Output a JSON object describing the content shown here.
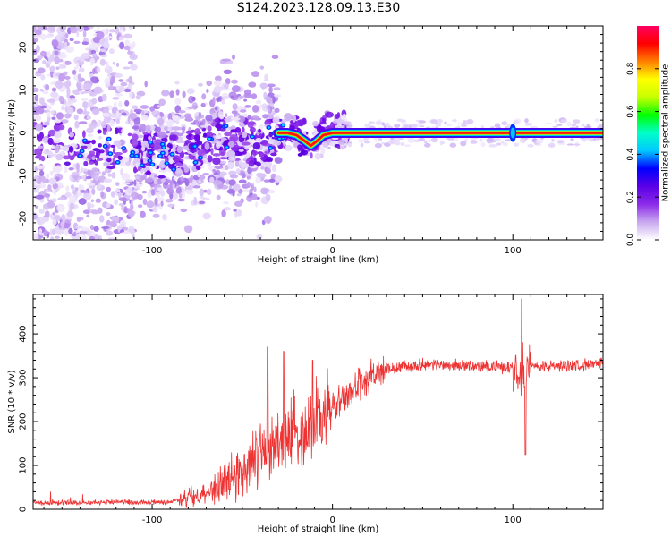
{
  "title": "S124.2023.128.09.13.E30",
  "chart_data": [
    {
      "type": "heatmap",
      "title": "",
      "xlabel": "Height of straight line (km)",
      "ylabel": "Frequency (Hz)",
      "xlim": [
        -166,
        150
      ],
      "ylim": [
        -25,
        25
      ],
      "x_ticks": [
        -100,
        0,
        100
      ],
      "y_ticks": [
        -20,
        -10,
        0,
        10,
        20
      ],
      "grid": false,
      "ridge": [
        [
          -166,
          -2
        ],
        [
          -140,
          -3
        ],
        [
          -120,
          -4
        ],
        [
          -100,
          -5
        ],
        [
          -90,
          -6
        ],
        [
          -80,
          -5
        ],
        [
          -70,
          -3
        ],
        [
          -60,
          -1
        ],
        [
          -50,
          -2
        ],
        [
          -40,
          -3
        ],
        [
          -30,
          0
        ],
        [
          -25,
          0
        ],
        [
          -20,
          -0.5
        ],
        [
          -15,
          -2
        ],
        [
          -12,
          -3
        ],
        [
          -9,
          -2
        ],
        [
          -5,
          -0.5
        ],
        [
          0,
          0
        ],
        [
          20,
          0
        ],
        [
          100,
          0
        ],
        [
          150,
          0
        ]
      ],
      "colorbar": {
        "label": "Normalized spectral amplitude",
        "ticks": [
          0.0,
          0.2,
          0.4,
          0.6,
          0.8
        ],
        "range": [
          0,
          1
        ],
        "colors": [
          "#ffffff",
          "#c9a8f0",
          "#8b2be8",
          "#5a00e6",
          "#0000ff",
          "#00c8ff",
          "#00ffc8",
          "#00ff00",
          "#c8ff00",
          "#ffff00",
          "#ff8000",
          "#ff0000",
          "#ff0060"
        ]
      }
    },
    {
      "type": "line",
      "title": "",
      "xlabel": "Height of straight line (km)",
      "ylabel": "SNR (10 * v/v)",
      "xlim": [
        -166,
        150
      ],
      "ylim": [
        0,
        490
      ],
      "x_ticks": [
        -100,
        0,
        100
      ],
      "y_ticks": [
        0,
        100,
        200,
        300,
        400
      ],
      "grid": false,
      "series": [
        {
          "color": "#ee3333",
          "points": [
            [
              -166,
              15
            ],
            [
              -150,
              15
            ],
            [
              -135,
              16
            ],
            [
              -120,
              17
            ],
            [
              -100,
              15
            ],
            [
              -90,
              18
            ],
            [
              -80,
              25
            ],
            [
              -70,
              40
            ],
            [
              -60,
              60
            ],
            [
              -50,
              90
            ],
            [
              -45,
              110
            ],
            [
              -40,
              120
            ],
            [
              -35,
              140
            ],
            [
              -30,
              150
            ],
            [
              -25,
              160
            ],
            [
              -20,
              170
            ],
            [
              -15,
              185
            ],
            [
              -10,
              200
            ],
            [
              -5,
              215
            ],
            [
              0,
              230
            ],
            [
              5,
              250
            ],
            [
              10,
              265
            ],
            [
              15,
              285
            ],
            [
              20,
              300
            ],
            [
              25,
              310
            ],
            [
              30,
              318
            ],
            [
              40,
              325
            ],
            [
              50,
              330
            ],
            [
              60,
              330
            ],
            [
              70,
              328
            ],
            [
              80,
              326
            ],
            [
              90,
              326
            ],
            [
              95,
              324
            ],
            [
              100,
              325
            ],
            [
              110,
              325
            ],
            [
              120,
              326
            ],
            [
              130,
              328
            ],
            [
              140,
              330
            ],
            [
              150,
              332
            ]
          ],
          "spikes": [
            [
              -36,
              370
            ],
            [
              -27,
              360
            ],
            [
              -11,
              340
            ],
            [
              105,
              480
            ],
            [
              107,
              125
            ]
          ]
        }
      ]
    }
  ]
}
